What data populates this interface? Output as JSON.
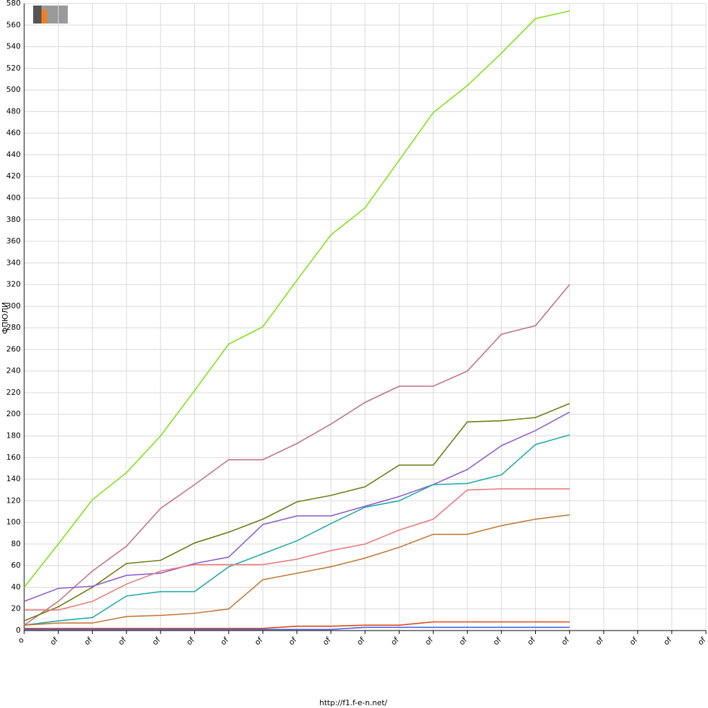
{
  "chart_data": {
    "type": "line",
    "y_label": "ФПЮЛИ",
    "categories": [
      "o",
      "of",
      "of",
      "of",
      "of",
      "of",
      "of",
      "of",
      "of",
      "of",
      "of",
      "of",
      "of",
      "of",
      "of",
      "of",
      "of",
      "of",
      "of",
      "of",
      "of"
    ],
    "series": [
      {
        "color": "#80e010",
        "values": [
          40,
          80,
          121,
          146,
          180,
          222,
          265,
          281,
          324,
          366,
          391,
          435,
          479,
          504,
          534,
          566,
          573,
          null,
          null,
          null,
          null
        ]
      },
      {
        "color": "#c07080",
        "values": [
          5,
          27,
          55,
          78,
          113,
          135,
          158,
          158,
          173,
          191,
          211,
          226,
          226,
          240,
          274,
          282,
          320,
          null,
          null,
          null,
          null
        ]
      },
      {
        "color": "#6b7a10",
        "values": [
          9,
          22,
          40,
          62,
          65,
          81,
          91,
          103,
          119,
          125,
          133,
          153,
          153,
          193,
          194,
          197,
          210,
          null,
          null,
          null,
          null
        ]
      },
      {
        "color": "#8c5ccc",
        "values": [
          27,
          39,
          41,
          51,
          53,
          62,
          68,
          98,
          106,
          106,
          115,
          124,
          135,
          149,
          171,
          185,
          202,
          null,
          null,
          null,
          null
        ]
      },
      {
        "color": "#20a8a8",
        "values": [
          5,
          9,
          12,
          32,
          36,
          36,
          59,
          71,
          83,
          99,
          114,
          120,
          135,
          136,
          144,
          172,
          181,
          null,
          null,
          null,
          null
        ]
      },
      {
        "color": "#e87878",
        "values": [
          19,
          19,
          27,
          43,
          55,
          61,
          61,
          61,
          66,
          74,
          80,
          93,
          103,
          130,
          131,
          131,
          131,
          null,
          null,
          null,
          null
        ]
      },
      {
        "color": "#c07830",
        "values": [
          5,
          7,
          7,
          13,
          14,
          16,
          20,
          47,
          53,
          59,
          67,
          77,
          89,
          89,
          97,
          103,
          107,
          null,
          null,
          null,
          null
        ]
      },
      {
        "color": "#e04010",
        "values": [
          2,
          2,
          2,
          2,
          2,
          2,
          2,
          2,
          4,
          4,
          5,
          5,
          8,
          8,
          8,
          8,
          8,
          null,
          null,
          null,
          null
        ]
      },
      {
        "color": "#4060e0",
        "values": [
          1,
          1,
          1,
          1,
          1,
          1,
          1,
          1,
          1,
          1,
          3,
          3,
          3,
          3,
          3,
          3,
          3,
          null,
          null,
          null,
          null
        ]
      }
    ],
    "ylim": [
      0,
      580
    ],
    "yticks": [
      0,
      20,
      40,
      60,
      80,
      100,
      120,
      140,
      160,
      180,
      200,
      220,
      240,
      260,
      280,
      300,
      320,
      340,
      360,
      380,
      400,
      420,
      440,
      460,
      480,
      500,
      520,
      540,
      560,
      580
    ],
    "grid": true
  },
  "footer": "http://f1.f-e-n.net/"
}
